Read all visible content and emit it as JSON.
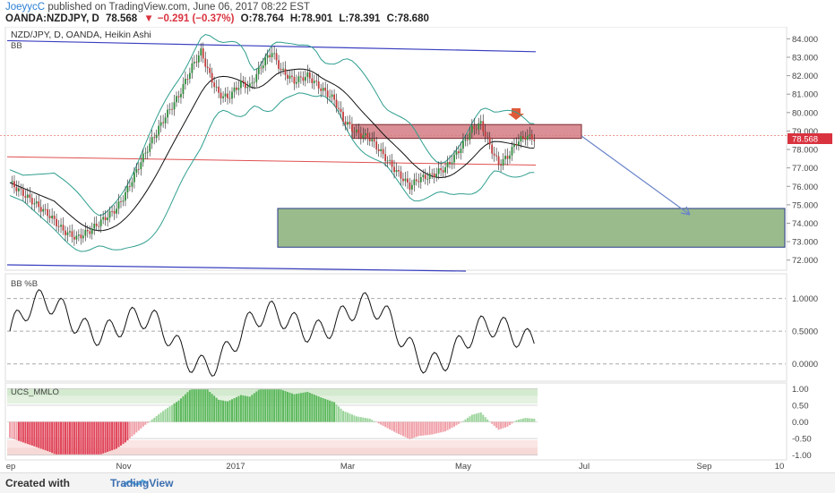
{
  "header": {
    "author": "JoeyycC",
    "published": "published on TradingView.com, June 06, 2017 08:22 EST",
    "symbol": "OANDA:NZDJPY, D",
    "last": "78.568",
    "change": "−0.291 (−0.37%)",
    "open": "O:78.764",
    "high": "H:78.901",
    "low": "L:78.391",
    "close": "C:78.680"
  },
  "footer": {
    "created": "Created with",
    "brand": "TradingView"
  },
  "chart_data": {
    "type": "candlestick",
    "title": "NZD/JPY, D, OANDA, Heikin Ashi",
    "overlay_label": "BB",
    "price_axis": {
      "range": [
        71.5,
        84.6
      ],
      "ticks": [
        "84.000",
        "83.000",
        "82.000",
        "81.000",
        "80.000",
        "79.000",
        "78.000",
        "77.000",
        "76.000",
        "75.000",
        "74.000",
        "73.000",
        "72.000"
      ]
    },
    "last_price_label": "78.568",
    "x_axis": {
      "ticks": [
        "ep",
        "Nov",
        "2017",
        "Mar",
        "May",
        "Jul",
        "Sep",
        "10"
      ]
    },
    "annotations": {
      "resistance_zone": [
        78.6,
        79.35
      ],
      "target_zone": [
        72.7,
        74.8
      ],
      "downtrend_line_top": [
        83.9,
        83.3
      ],
      "red_trend_line": [
        77.6,
        77.15
      ]
    },
    "indicators": [
      {
        "name": "BB %B",
        "ticks": [
          "1.0000",
          "0.5000",
          "0.0000"
        ],
        "range": [
          -0.25,
          1.35
        ]
      },
      {
        "name": "UCS_MMLO",
        "ticks": [
          "1.00",
          "0.50",
          "0.00",
          "-0.50",
          "-1.00"
        ],
        "range": [
          -1.12,
          1.12
        ]
      }
    ]
  },
  "colors": {
    "bull": "#2e8b3a",
    "bear": "#c23b3b",
    "zone_red": "#d27b82",
    "zone_green": "#8fb57f",
    "trend_blue": "#3a3fbf",
    "arrow_blue": "#6a84c8",
    "bb": "#2e9e8e"
  }
}
